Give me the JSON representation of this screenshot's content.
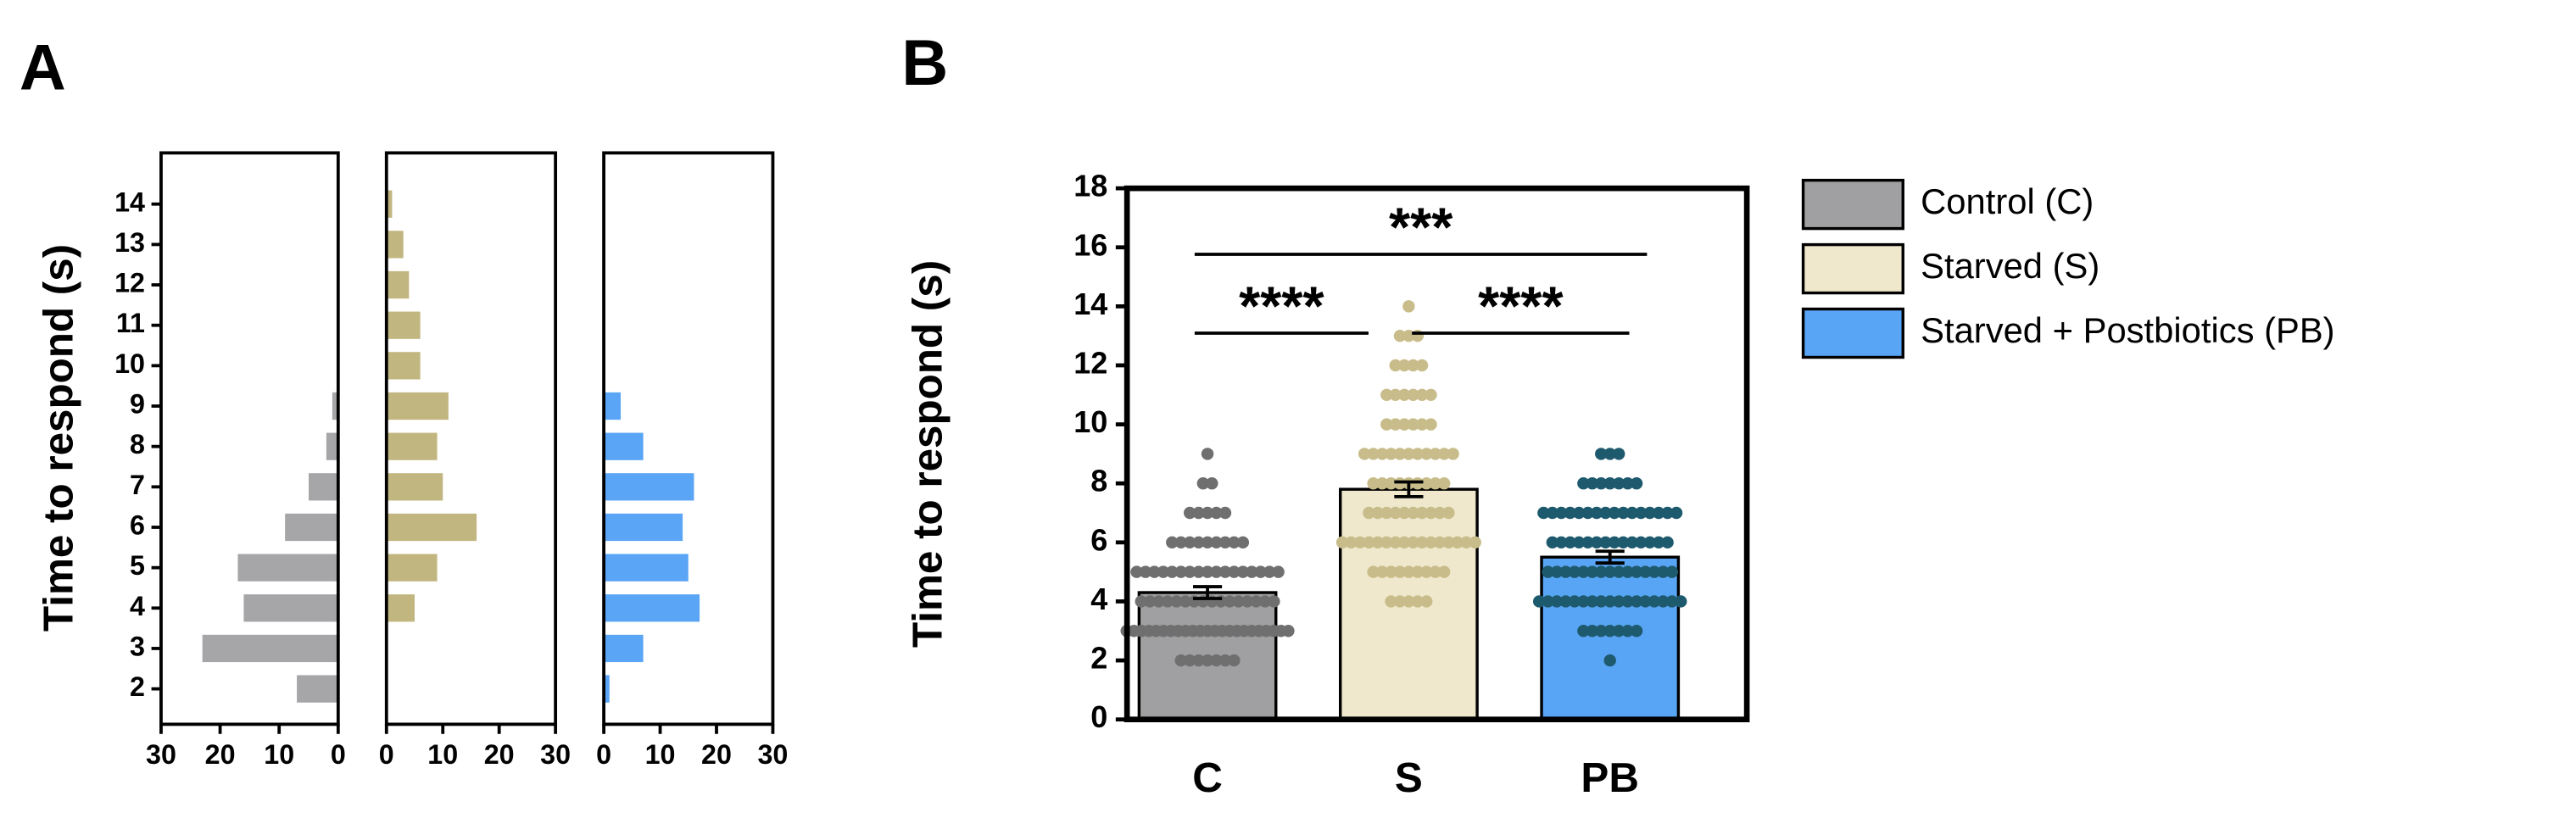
{
  "chart_data": [
    {
      "type": "barh",
      "panel": "A",
      "ylabel": "Time to respond (s)",
      "categories": [
        2,
        3,
        4,
        5,
        6,
        7,
        8,
        9,
        10,
        11,
        12,
        13,
        14
      ],
      "values": [
        7,
        23,
        16,
        17,
        9,
        5,
        2,
        1,
        0,
        0,
        0,
        0,
        0
      ],
      "color": "#a6a6a9",
      "xlim": [
        0,
        30
      ],
      "xticks": [
        0,
        10,
        20,
        30
      ],
      "xreverse": true
    },
    {
      "type": "barh",
      "categories": [
        2,
        3,
        4,
        5,
        6,
        7,
        8,
        9,
        10,
        11,
        12,
        13,
        14
      ],
      "values": [
        0,
        0,
        5,
        9,
        16,
        10,
        9,
        11,
        6,
        6,
        4,
        3,
        1
      ],
      "color": "#c2b680",
      "xlim": [
        0,
        30
      ],
      "xticks": [
        0,
        10,
        20,
        30
      ],
      "xreverse": false
    },
    {
      "type": "barh",
      "categories": [
        2,
        3,
        4,
        5,
        6,
        7,
        8,
        9,
        10,
        11,
        12,
        13,
        14
      ],
      "values": [
        1,
        7,
        17,
        15,
        14,
        16,
        7,
        3,
        0,
        0,
        0,
        0,
        0
      ],
      "color": "#5aa5f5",
      "xlim": [
        0,
        30
      ],
      "xticks": [
        0,
        10,
        20,
        30
      ],
      "xreverse": false
    },
    {
      "type": "bar",
      "panel": "B",
      "ylabel": "Time to respond (s)",
      "categories": [
        "C",
        "S",
        "PB"
      ],
      "values": [
        4.3,
        7.8,
        5.5
      ],
      "errors": [
        0.2,
        0.25,
        0.2
      ],
      "colors": [
        "#a0a0a3",
        "#efe8cc",
        "#59a5f5"
      ],
      "point_colors": [
        "#6f6f6f",
        "#c8bd8a",
        "#1e5a6e"
      ],
      "legend": [
        "Control (C)",
        "Starved (S)",
        "Starved + Postbiotics (PB)"
      ],
      "ylim": [
        0,
        18
      ],
      "yticks": [
        0,
        2,
        4,
        6,
        8,
        10,
        12,
        14,
        16,
        18
      ],
      "annotations": [
        {
          "text": "***",
          "from": "C",
          "to": "PB"
        },
        {
          "text": "****",
          "from": "C",
          "to": "S"
        },
        {
          "text": "****",
          "from": "S",
          "to": "PB"
        }
      ]
    }
  ]
}
